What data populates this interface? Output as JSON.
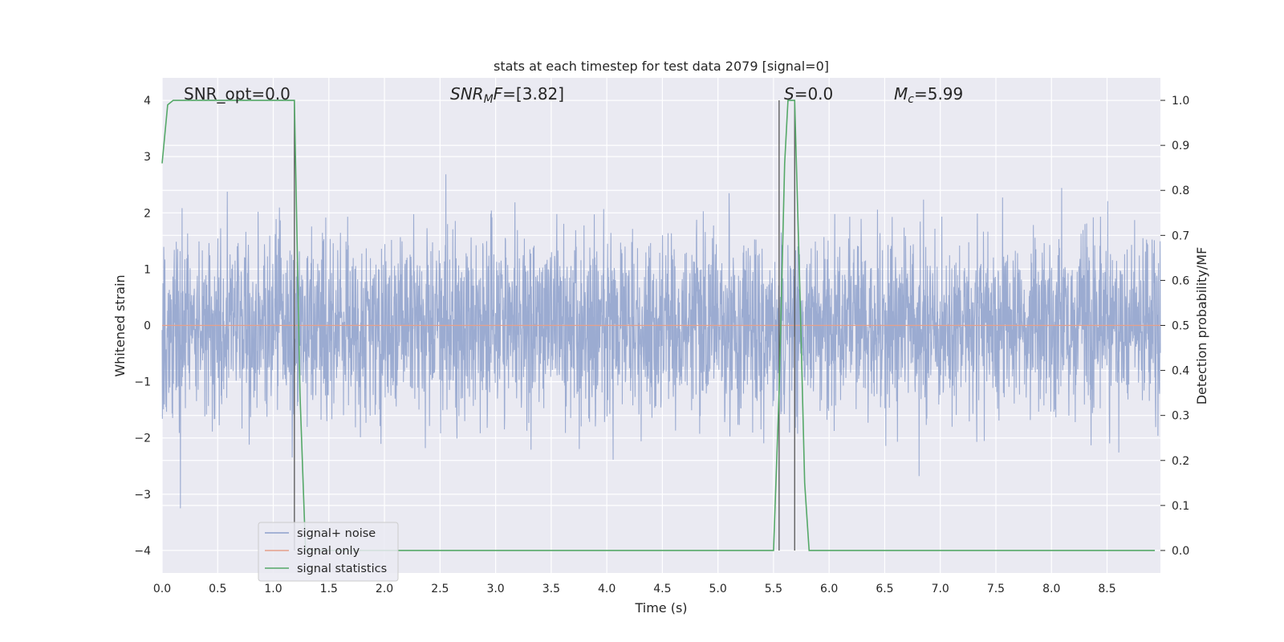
{
  "chart_data": {
    "type": "line",
    "title": "stats at each timestep for test data 2079 [signal=0]",
    "xlabel": "Time (s)",
    "ylabel": "Whitened strain",
    "y2label": "Detection probability/MF",
    "xlim": [
      0.0,
      8.98
    ],
    "ylim": [
      -4.4,
      4.4
    ],
    "y2lim": [
      -0.05,
      1.05
    ],
    "xticks": [
      "0.0",
      "0.5",
      "1.0",
      "1.5",
      "2.0",
      "2.5",
      "3.0",
      "3.5",
      "4.0",
      "4.5",
      "5.0",
      "5.5",
      "6.0",
      "6.5",
      "7.0",
      "7.5",
      "8.0",
      "8.5"
    ],
    "yticks": [
      "4",
      "3",
      "2",
      "1",
      "0",
      "−1",
      "−2",
      "−3",
      "−4"
    ],
    "y2ticks": [
      "1.0",
      "0.9",
      "0.8",
      "0.7",
      "0.6",
      "0.5",
      "0.4",
      "0.3",
      "0.2",
      "0.1",
      "0.0"
    ],
    "grid": true,
    "legend_position": "bottom-left",
    "annotations": {
      "snr_opt": "SNR_opt=0.0",
      "snr_mf_main": "SNR",
      "snr_mf_sub": "M",
      "snr_mf_tail": "F",
      "snr_mf_value": "=[3.82]",
      "s_main": "S",
      "s_value": "=0.0",
      "mc_main": "M",
      "mc_sub": "c",
      "mc_value": "=5.99"
    },
    "vertical_markers_s": [
      1.19,
      5.55,
      5.69
    ],
    "series": [
      {
        "name": "signal+ noise",
        "color": "#8da0cb",
        "description": "whitened strain noise, approx. Gaussian, sigma ~ 0.8, spikes up to ~ +/-4"
      },
      {
        "name": "signal only",
        "color": "#e5a08a",
        "x": [
          0.0,
          8.98
        ],
        "y": [
          0.0,
          0.0
        ]
      },
      {
        "name": "signal statistics",
        "color": "#55a868",
        "axis": "right",
        "x": [
          0.0,
          0.05,
          0.1,
          0.15,
          0.2,
          1.1,
          1.19,
          1.24,
          1.29,
          2.0,
          3.0,
          4.0,
          5.0,
          5.5,
          5.55,
          5.6,
          5.63,
          5.69,
          5.74,
          5.78,
          5.82,
          6.0,
          7.0,
          8.0,
          8.93
        ],
        "y": [
          0.86,
          0.99,
          1.0,
          1.0,
          1.0,
          1.0,
          1.0,
          0.35,
          0.0,
          0.0,
          0.0,
          0.0,
          0.0,
          0.0,
          0.35,
          0.86,
          1.0,
          1.0,
          0.55,
          0.15,
          0.0,
          0.0,
          0.0,
          0.0,
          0.0
        ]
      }
    ]
  }
}
